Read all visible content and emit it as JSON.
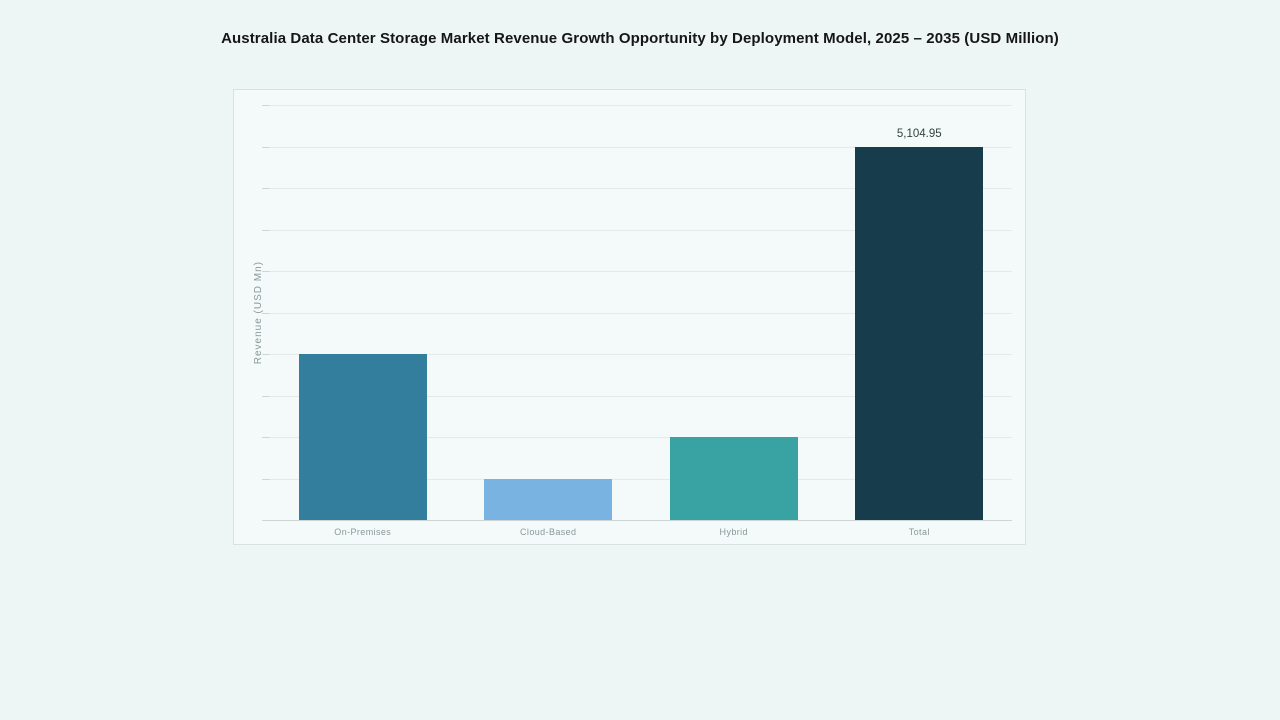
{
  "chart_data": {
    "type": "bar",
    "title": "Australia Data Center Storage Market Revenue Growth Opportunity by Deployment Model, 2025 – 2035 (USD Million)",
    "ylabel": "Revenue (USD Mn)",
    "xlabel": "",
    "categories": [
      "On-Premises",
      "Cloud-Based",
      "Hybrid",
      "Total"
    ],
    "values": [
      2269,
      567,
      1134,
      5104.95
    ],
    "value_labels": [
      "",
      "",
      "",
      "5,104.95"
    ],
    "bar_colors": [
      "#337d9d",
      "#78b3e1",
      "#39a3a3",
      "#173c4b"
    ],
    "ylim": [
      0,
      5672
    ],
    "gridline_count": 11,
    "grid": "horizontal",
    "legend": "none",
    "y_tick_labels_visible": false
  },
  "colors": {
    "page_bg": "#edf6f5",
    "card_bg": "#f4fafa",
    "card_border": "#d9e1e0",
    "gridline": "#e3eae9",
    "axis_line": "#ccd6d5",
    "title_text": "#161616",
    "axis_text": "#8a9897",
    "value_text": "#33413f"
  }
}
